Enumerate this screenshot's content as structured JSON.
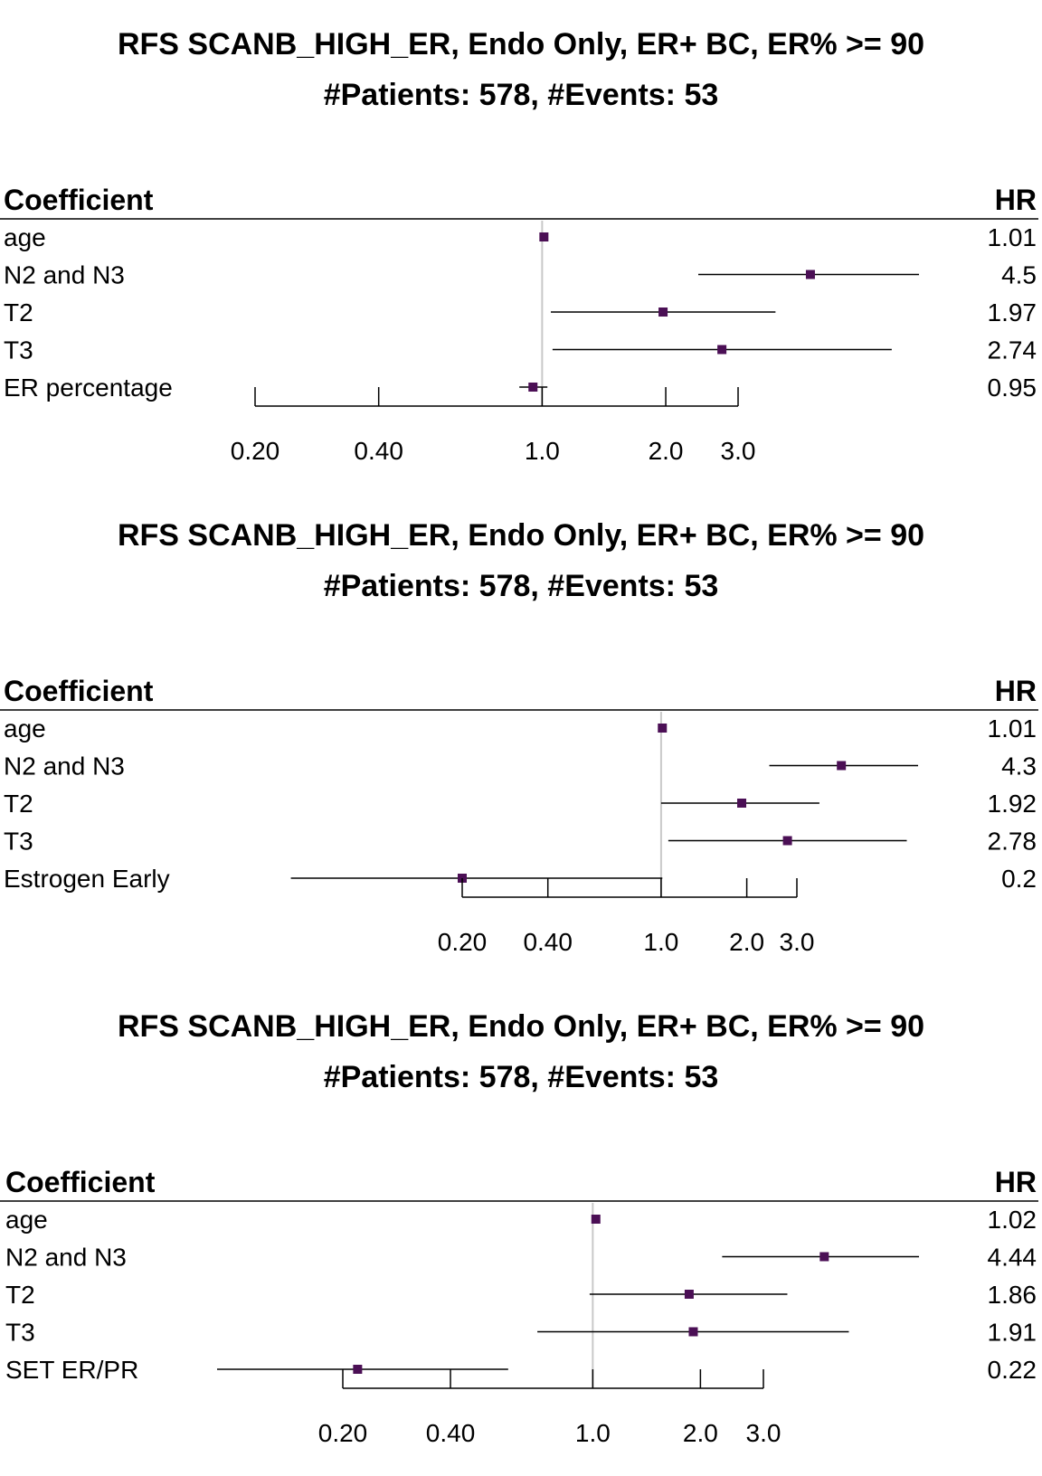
{
  "chart_data": [
    {
      "type": "forest",
      "title": "RFS SCANB_HIGH_ER, Endo Only, ER+ BC, ER% >= 90",
      "subtitle": "#Patients: 578, #Events: 53",
      "columns": {
        "coef": "Coefficient",
        "hr": "HR"
      },
      "scale": "log",
      "xlim": [
        0.2,
        3.0
      ],
      "xticks": [
        "0.20",
        "0.40",
        "1.0",
        "2.0",
        "3.0"
      ],
      "reference_line": 1.0,
      "marker_color": "#4b0f55",
      "rows": [
        {
          "label": "age",
          "hr": 1.01,
          "lower": 1.0,
          "upper": 1.03,
          "hr_text": "1.01"
        },
        {
          "label": "N2 and N3",
          "hr": 4.5,
          "lower": 2.4,
          "upper": 8.5,
          "hr_text": "4.5"
        },
        {
          "label": "T2",
          "hr": 1.97,
          "lower": 1.05,
          "upper": 3.7,
          "hr_text": "1.97"
        },
        {
          "label": "T3",
          "hr": 2.74,
          "lower": 1.06,
          "upper": 7.1,
          "hr_text": "2.74"
        },
        {
          "label": "ER percentage",
          "hr": 0.95,
          "lower": 0.88,
          "upper": 1.03,
          "hr_text": "0.95"
        }
      ]
    },
    {
      "type": "forest",
      "title": "RFS SCANB_HIGH_ER, Endo Only, ER+ BC, ER% >= 90",
      "subtitle": "#Patients: 578, #Events: 53",
      "columns": {
        "coef": "Coefficient",
        "hr": "HR"
      },
      "scale": "log",
      "xlim": [
        0.2,
        3.0
      ],
      "xticks": [
        "0.20",
        "0.40",
        "1.0",
        "2.0",
        "3.0"
      ],
      "reference_line": 1.0,
      "marker_color": "#4b0f55",
      "rows": [
        {
          "label": "age",
          "hr": 1.01,
          "lower": 0.99,
          "upper": 1.03,
          "hr_text": "1.01"
        },
        {
          "label": "N2 and N3",
          "hr": 4.3,
          "lower": 2.4,
          "upper": 8.0,
          "hr_text": "4.3"
        },
        {
          "label": "T2",
          "hr": 1.92,
          "lower": 1.0,
          "upper": 3.6,
          "hr_text": "1.92"
        },
        {
          "label": "T3",
          "hr": 2.78,
          "lower": 1.06,
          "upper": 7.3,
          "hr_text": "2.78"
        },
        {
          "label": "Estrogen Early",
          "hr": 0.2,
          "lower": 0.05,
          "upper": 1.01,
          "hr_text": "0.2"
        }
      ]
    },
    {
      "type": "forest",
      "title": "RFS SCANB_HIGH_ER, Endo Only, ER+ BC, ER% >= 90",
      "subtitle": "#Patients: 578, #Events: 53",
      "columns": {
        "coef": "Coefficient",
        "hr": "HR"
      },
      "scale": "log",
      "xlim": [
        0.2,
        3.0
      ],
      "xticks": [
        "0.20",
        "0.40",
        "1.0",
        "2.0",
        "3.0"
      ],
      "reference_line": 1.0,
      "marker_color": "#4b0f55",
      "rows": [
        {
          "label": "age",
          "hr": 1.02,
          "lower": 1.0,
          "upper": 1.04,
          "hr_text": "1.02"
        },
        {
          "label": "N2 and N3",
          "hr": 4.44,
          "lower": 2.3,
          "upper": 8.6,
          "hr_text": "4.44"
        },
        {
          "label": "T2",
          "hr": 1.86,
          "lower": 0.98,
          "upper": 3.5,
          "hr_text": "1.86"
        },
        {
          "label": "T3",
          "hr": 1.91,
          "lower": 0.7,
          "upper": 5.2,
          "hr_text": "1.91"
        },
        {
          "label": "SET ER/PR",
          "hr": 0.22,
          "lower": 0.06,
          "upper": 0.58,
          "hr_text": "0.22"
        }
      ]
    }
  ]
}
